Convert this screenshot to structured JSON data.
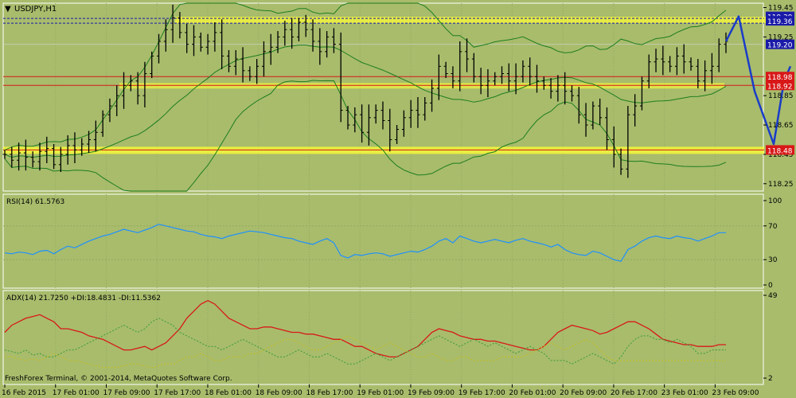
{
  "window": {
    "symbol_title": "USDJPY,H1",
    "footer": "FreshForex Terminal, © 2001-2014, MetaQuotes Software Corp."
  },
  "colors": {
    "background": "#a8bc6c",
    "grid": "#93a860",
    "candles": "#000000",
    "bands": "#1e7d1e",
    "support_red": "#d81818",
    "zone_yellow": "#ffff33",
    "forecast": "#1a3cc8",
    "rsi": "#1e90ff",
    "adx": "#d81818",
    "plus_di": "#3a9a3a",
    "minus_di": "#c8c020",
    "price_tag_blue": "#1a1aa8",
    "price_tag_red": "#d81818"
  },
  "chart_data": [
    {
      "type": "candlestick",
      "title": "USDJPY,H1",
      "timeframe": "H1",
      "ylim": [
        118.2,
        119.48
      ],
      "y_ticks": [
        "119.45",
        "119.25",
        "118.85",
        "118.65",
        "118.45",
        "118.25"
      ],
      "x_ticks": [
        "16 Feb 2015",
        "17 Feb 01:00",
        "17 Feb 09:00",
        "17 Feb 17:00",
        "18 Feb 01:00",
        "18 Feb 09:00",
        "18 Feb 17:00",
        "19 Feb 01:00",
        "19 Feb 09:00",
        "19 Feb 17:00",
        "20 Feb 01:00",
        "20 Feb 09:00",
        "20 Feb 17:00",
        "23 Feb 01:00",
        "23 Feb 09:00"
      ],
      "closes": [
        118.45,
        118.41,
        118.46,
        118.43,
        118.4,
        118.47,
        118.49,
        118.38,
        118.45,
        118.51,
        118.48,
        118.52,
        118.55,
        118.6,
        118.72,
        118.78,
        118.85,
        118.92,
        118.95,
        118.85,
        119.0,
        119.12,
        119.22,
        119.3,
        119.38,
        119.28,
        119.2,
        119.25,
        119.18,
        119.22,
        119.28,
        119.12,
        119.05,
        119.1,
        119.02,
        118.98,
        119.05,
        119.15,
        119.18,
        119.25,
        119.3,
        119.25,
        119.35,
        119.3,
        119.22,
        119.15,
        119.25,
        119.2,
        118.75,
        118.65,
        118.72,
        118.6,
        118.7,
        118.75,
        118.68,
        118.55,
        118.62,
        118.7,
        118.75,
        118.72,
        118.8,
        118.9,
        119.05,
        119.0,
        118.95,
        119.15,
        119.1,
        118.98,
        118.92,
        118.95,
        118.98,
        119.0,
        118.95,
        118.98,
        119.05,
        118.98,
        118.95,
        118.92,
        118.88,
        118.92,
        118.88,
        118.85,
        118.72,
        118.65,
        118.78,
        118.7,
        118.55,
        118.45,
        118.35,
        118.72,
        118.78,
        118.95,
        119.08,
        119.1,
        119.08,
        119.05,
        119.12,
        119.08,
        119.05,
        118.95,
        119.02,
        119.05,
        119.2,
        119.22
      ],
      "support_resistance": [
        {
          "label": "119.36",
          "value": 119.36,
          "style": "dashed"
        },
        {
          "label": "119.20",
          "value": 119.2,
          "style": "current"
        },
        {
          "label": "118.98",
          "value": 118.98,
          "style": "red"
        },
        {
          "label": "118.92",
          "value": 118.92,
          "style": "red"
        },
        {
          "label": "118.48",
          "value": 118.48,
          "style": "red"
        }
      ],
      "tag_texts": {
        "top_partial": "119.39",
        "mid_partial": "118.98",
        "mid_partial2": "118.92"
      },
      "forecast_path": [
        119.22,
        119.39,
        118.88,
        118.52,
        118.95,
        119.05
      ],
      "bands": "bollinger"
    },
    {
      "type": "line",
      "title": "RSI(14) 61.5763",
      "ylim": [
        0,
        100
      ],
      "y_ticks": [
        "100",
        "70",
        "30",
        "0"
      ],
      "levels": [
        70,
        30
      ],
      "series": [
        {
          "name": "RSI(14)",
          "values": [
            38,
            37,
            39,
            38,
            36,
            40,
            41,
            37,
            42,
            46,
            44,
            48,
            52,
            55,
            58,
            60,
            63,
            66,
            64,
            62,
            65,
            68,
            72,
            70,
            68,
            66,
            64,
            63,
            60,
            58,
            57,
            55,
            58,
            60,
            62,
            64,
            63,
            62,
            60,
            58,
            56,
            55,
            52,
            50,
            48,
            52,
            55,
            50,
            35,
            32,
            36,
            35,
            37,
            38,
            37,
            34,
            36,
            38,
            40,
            39,
            42,
            46,
            52,
            55,
            50,
            58,
            55,
            52,
            50,
            52,
            54,
            52,
            50,
            53,
            55,
            52,
            50,
            48,
            45,
            48,
            42,
            38,
            36,
            35,
            40,
            38,
            34,
            30,
            28,
            42,
            46,
            52,
            56,
            58,
            56,
            55,
            58,
            56,
            55,
            52,
            55,
            58,
            62,
            62
          ]
        }
      ]
    },
    {
      "type": "line",
      "title": "ADX(14) 21.7250 +DI:18.4831 -DI:11.5362",
      "ylim": [
        2,
        49
      ],
      "y_ticks": [
        "49",
        "2"
      ],
      "series": [
        {
          "name": "ADX(14)",
          "values": [
            28,
            32,
            34,
            36,
            37,
            38,
            36,
            34,
            30,
            30,
            29,
            28,
            26,
            25,
            24,
            22,
            20,
            18,
            18,
            19,
            20,
            18,
            20,
            22,
            26,
            30,
            36,
            40,
            44,
            46,
            44,
            40,
            36,
            34,
            32,
            30,
            30,
            31,
            31,
            30,
            29,
            28,
            28,
            27,
            27,
            26,
            25,
            24,
            24,
            22,
            20,
            20,
            18,
            16,
            15,
            14,
            14,
            16,
            18,
            20,
            24,
            28,
            30,
            29,
            28,
            26,
            25,
            24,
            24,
            23,
            23,
            22,
            21,
            20,
            19,
            18,
            18,
            20,
            24,
            28,
            30,
            32,
            31,
            30,
            29,
            27,
            28,
            30,
            32,
            34,
            34,
            32,
            30,
            27,
            24,
            23,
            22,
            21,
            21,
            20,
            20,
            20,
            21,
            21
          ]
        },
        {
          "name": "+DI",
          "values": [
            18,
            17,
            16,
            18,
            15,
            16,
            14,
            14,
            16,
            18,
            18,
            20,
            22,
            24,
            26,
            28,
            30,
            32,
            30,
            28,
            30,
            34,
            36,
            34,
            32,
            28,
            26,
            24,
            22,
            20,
            20,
            18,
            20,
            22,
            24,
            22,
            20,
            18,
            16,
            14,
            14,
            16,
            18,
            16,
            14,
            14,
            16,
            14,
            12,
            10,
            10,
            12,
            14,
            16,
            14,
            12,
            14,
            16,
            18,
            20,
            22,
            24,
            26,
            24,
            22,
            20,
            22,
            24,
            22,
            20,
            22,
            20,
            18,
            16,
            18,
            20,
            18,
            16,
            12,
            12,
            12,
            10,
            12,
            14,
            16,
            14,
            12,
            10,
            14,
            20,
            24,
            26,
            26,
            24,
            24,
            22,
            24,
            22,
            20,
            16,
            16,
            18,
            18,
            18
          ]
        },
        {
          "name": "-DI",
          "values": [
            14,
            14,
            13,
            12,
            13,
            12,
            14,
            16,
            14,
            12,
            12,
            11,
            10,
            9,
            8,
            8,
            8,
            9,
            10,
            10,
            9,
            8,
            9,
            10,
            10,
            12,
            14,
            14,
            16,
            14,
            12,
            12,
            14,
            14,
            14,
            16,
            16,
            18,
            20,
            22,
            24,
            24,
            22,
            20,
            18,
            18,
            20,
            22,
            24,
            26,
            24,
            22,
            20,
            18,
            20,
            22,
            20,
            18,
            16,
            14,
            14,
            16,
            14,
            12,
            12,
            14,
            14,
            12,
            12,
            12,
            12,
            14,
            14,
            14,
            14,
            16,
            18,
            20,
            22,
            20,
            18,
            20,
            22,
            24,
            22,
            18,
            14,
            12,
            12,
            12,
            12,
            12,
            12,
            12,
            12,
            12,
            12,
            12,
            12,
            12,
            12,
            12,
            12,
            12
          ]
        }
      ]
    }
  ]
}
